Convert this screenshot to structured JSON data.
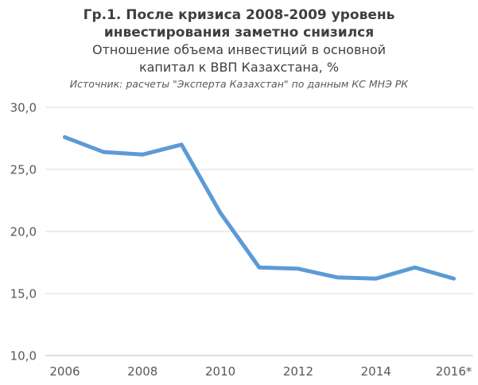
{
  "header": {
    "title_lines": [
      "Гр.1. После кризиса 2008-2009 уровень",
      "инвестирования заметно снизился"
    ],
    "subtitle_lines": [
      "Отношение объема инвестиций в основной",
      "капитал к ВВП Казахстана, %"
    ],
    "source": "Источник: расчеты \"Эксперта Казахстан\" по данным КС МНЭ РК"
  },
  "chart_data": {
    "type": "line",
    "title": "Гр.1. После кризиса 2008-2009 уровень инвестирования заметно снизился",
    "subtitle": "Отношение объема инвестиций в основной капитал к ВВП Казахстана, %",
    "source": "Источник: расчеты \"Эксперта Казахстан\" по данным КС МНЭ РК",
    "x": [
      2006,
      2007,
      2008,
      2009,
      2010,
      2011,
      2012,
      2013,
      2014,
      2015,
      2016
    ],
    "values": [
      27.6,
      26.4,
      26.2,
      27.0,
      21.5,
      17.1,
      17.0,
      16.3,
      16.2,
      17.1,
      16.2
    ],
    "ylim": [
      10,
      30
    ],
    "y_ticks": [
      30,
      25,
      20,
      15,
      10
    ],
    "y_tick_labels": [
      "30,0",
      "25,0",
      "20,0",
      "15,0",
      "10,0"
    ],
    "x_tick_positions": [
      0,
      2,
      4,
      6,
      8,
      10
    ],
    "x_tick_labels": [
      "2006",
      "2008",
      "2010",
      "2012",
      "2014",
      "2016*"
    ],
    "grid": true,
    "legend": false,
    "line_color": "#5B9BD5",
    "line_width": 5,
    "gridline_color": "#D9D9D9",
    "axis_line_color": "#BFBFBF",
    "tick_label_color": "#595959"
  }
}
